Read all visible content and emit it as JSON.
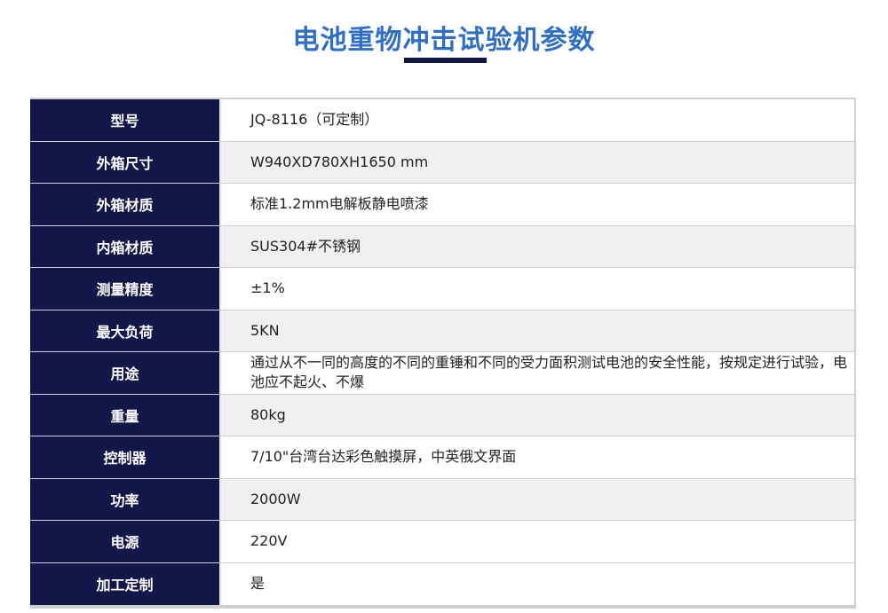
{
  "title": "电池重物冲击试验机参数",
  "rows": [
    {
      "label": "型号",
      "value": "JQ-8116（可定制）"
    },
    {
      "label": "外箱尺寸",
      "value": "W940XD780XH1650 mm"
    },
    {
      "label": "外箱材质",
      "value": "标准1.2mm电解板静电喷漆"
    },
    {
      "label": "内箱材质",
      "value": "SUS304#不锈钢"
    },
    {
      "label": "测量精度",
      "value": "±1%"
    },
    {
      "label": "最大负荷",
      "value": "5KN"
    },
    {
      "label": "用途",
      "value": "通过从不一同的高度的不同的重锤和不同的受力面积测试电池的安全性能，按规定进行试验，电池应不起火、不爆"
    },
    {
      "label": "重量",
      "value": "80kg"
    },
    {
      "label": "控制器",
      "value": "7/10\"台湾台达彩色触摸屏，中英俄文界面"
    },
    {
      "label": "功率",
      "value": "2000W"
    },
    {
      "label": "电源",
      "value": "220V"
    },
    {
      "label": "加工定制",
      "value": "是"
    }
  ]
}
